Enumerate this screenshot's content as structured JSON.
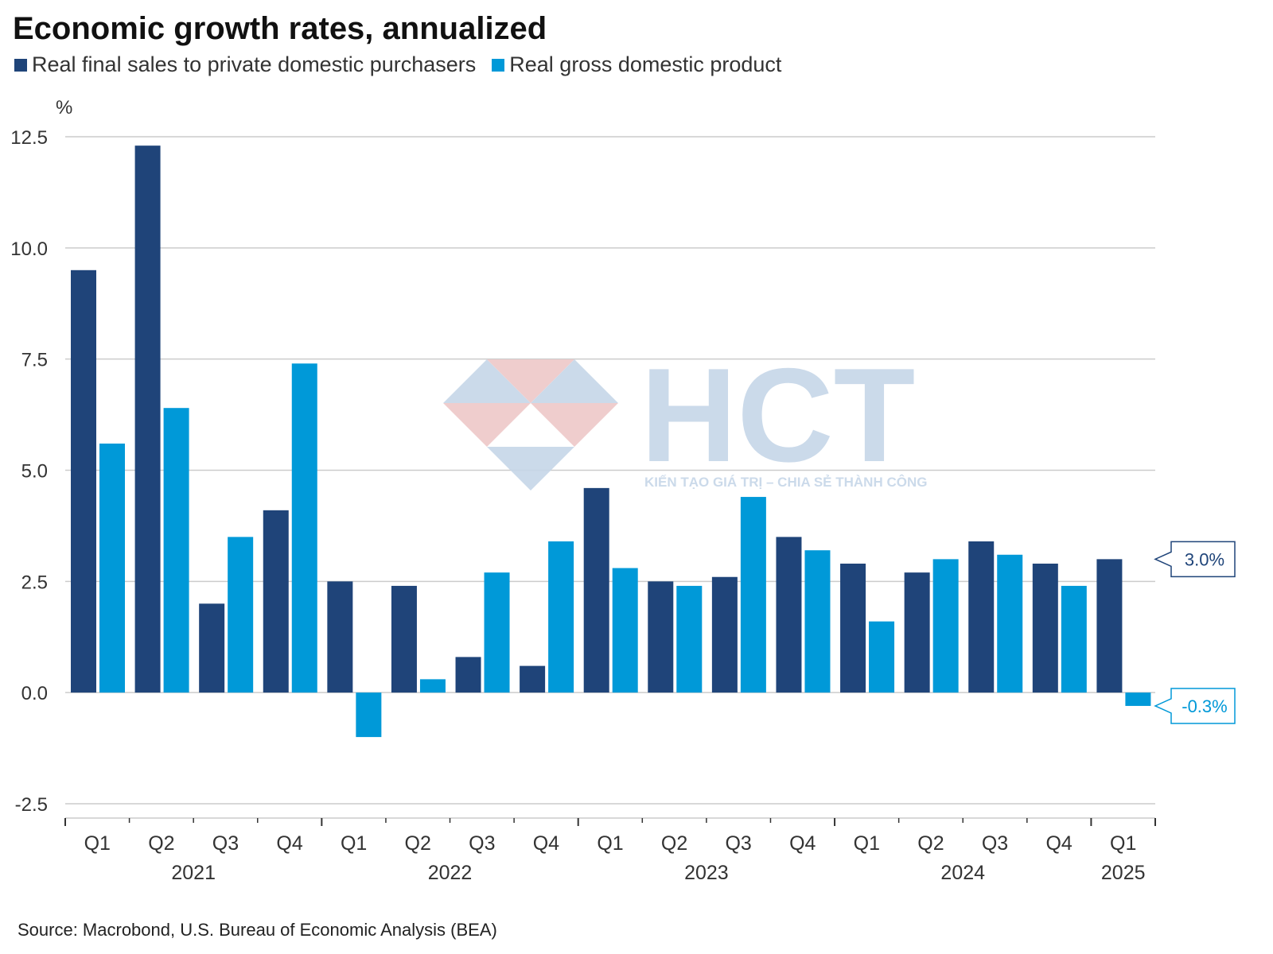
{
  "colors": {
    "series_dark": "#1f4479",
    "series_light": "#0099d8",
    "grid": "#cccccc",
    "axis": "#333333",
    "watermark_blue": "#c6d6e8",
    "watermark_red": "#eec8c8"
  },
  "watermark": {
    "logo_text": "HCT",
    "tagline": "KIẾN TẠO GIÁ TRỊ – CHIA SẺ THÀNH CÔNG"
  },
  "footer": {
    "source": "Source: Macrobond, U.S. Bureau of Economic Analysis (BEA)"
  },
  "chart_data": {
    "type": "bar",
    "title": "Economic growth rates, annualized",
    "ylabel": "%",
    "xlabel": "",
    "ylim": [
      -2.5,
      12.5
    ],
    "yticks": [
      12.5,
      10.0,
      7.5,
      5.0,
      2.5,
      0.0,
      -2.5
    ],
    "ytick_labels": [
      "12.5",
      "10.0",
      "7.5",
      "5.0",
      "2.5",
      "0.0",
      "-2.5"
    ],
    "grid": true,
    "legend_position": "top-left",
    "categories": [
      "Q1",
      "Q2",
      "Q3",
      "Q4",
      "Q1",
      "Q2",
      "Q3",
      "Q4",
      "Q1",
      "Q2",
      "Q3",
      "Q4",
      "Q1",
      "Q2",
      "Q3",
      "Q4",
      "Q1"
    ],
    "years": [
      {
        "label": "2021",
        "start": 0,
        "end": 3
      },
      {
        "label": "2022",
        "start": 4,
        "end": 7
      },
      {
        "label": "2023",
        "start": 8,
        "end": 11
      },
      {
        "label": "2024",
        "start": 12,
        "end": 15
      },
      {
        "label": "2025",
        "start": 16,
        "end": 16
      }
    ],
    "series": [
      {
        "name": "Real final sales to private domestic purchasers",
        "values": [
          9.5,
          12.3,
          2.0,
          4.1,
          2.5,
          2.4,
          0.8,
          0.6,
          4.6,
          2.5,
          2.6,
          3.5,
          2.9,
          2.7,
          3.4,
          2.9,
          3.0
        ]
      },
      {
        "name": "Real gross domestic product",
        "values": [
          5.6,
          6.4,
          3.5,
          7.4,
          -1.0,
          0.3,
          2.7,
          3.4,
          2.8,
          2.4,
          4.4,
          3.2,
          1.6,
          3.0,
          3.1,
          2.4,
          -0.3
        ]
      }
    ],
    "annotations": [
      {
        "series": 0,
        "index": 16,
        "value": 3.0,
        "text": "3.0%"
      },
      {
        "series": 1,
        "index": 16,
        "value": -0.3,
        "text": "-0.3%"
      }
    ]
  }
}
